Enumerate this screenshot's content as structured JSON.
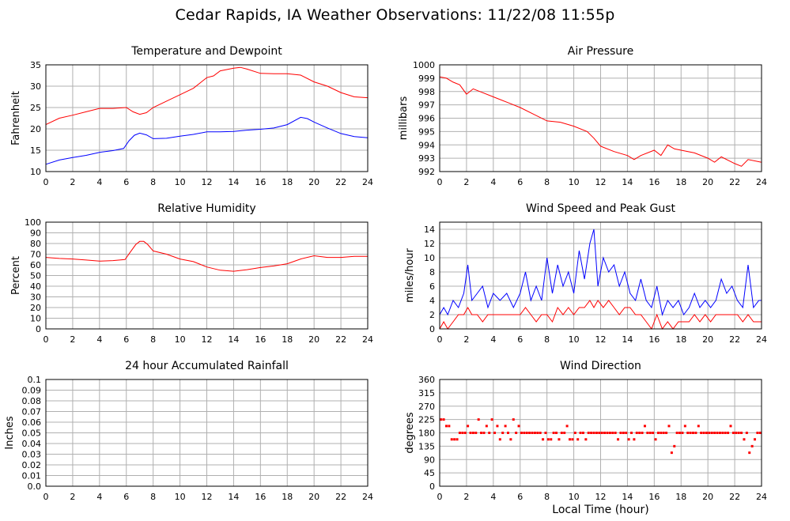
{
  "title": "Cedar Rapids, IA Weather Observations: 11/22/08 11:55p",
  "x_axis_label": "Local Time (hour)",
  "colors": {
    "red": "#ff0000",
    "blue": "#0000ff",
    "grid": "#b0b0b0"
  },
  "chart_data": [
    {
      "id": "temp",
      "type": "line",
      "title": "Temperature and Dewpoint",
      "ylabel": "Fahrenheit",
      "xlim": [
        0,
        24
      ],
      "ylim": [
        10,
        35
      ],
      "yticks": [
        10,
        15,
        20,
        25,
        30,
        35
      ],
      "xticks": [
        0,
        2,
        4,
        6,
        8,
        10,
        12,
        14,
        16,
        18,
        20,
        22,
        24
      ],
      "grid": true,
      "series": [
        {
          "color": "#ff0000",
          "x": [
            0,
            1,
            2,
            3,
            4,
            5,
            6,
            6.5,
            7,
            7.5,
            8,
            9,
            10,
            11,
            12,
            12.5,
            13,
            14,
            14.5,
            15,
            16,
            17,
            18,
            19,
            20,
            21,
            22,
            23,
            24
          ],
          "values": [
            21,
            22.5,
            23.2,
            24,
            24.8,
            24.8,
            25,
            24,
            23.4,
            23.8,
            25,
            26.5,
            28,
            29.5,
            32,
            32.4,
            33.6,
            34.2,
            34.4,
            34,
            33,
            32.9,
            32.9,
            32.6,
            31,
            30,
            28.5,
            27.5,
            27.3
          ]
        },
        {
          "color": "#0000ff",
          "x": [
            0,
            1,
            2,
            3,
            4,
            5,
            5.8,
            6.2,
            6.6,
            7,
            7.5,
            8,
            9,
            10,
            11,
            12,
            13,
            14,
            15,
            16,
            17,
            18,
            19,
            19.5,
            20,
            21,
            22,
            23,
            24
          ],
          "values": [
            11.7,
            12.7,
            13.3,
            13.8,
            14.5,
            14.9,
            15.4,
            17.2,
            18.5,
            19,
            18.6,
            17.7,
            17.8,
            18.3,
            18.7,
            19.3,
            19.3,
            19.4,
            19.7,
            19.9,
            20.2,
            21,
            22.7,
            22.4,
            21.6,
            20.2,
            18.9,
            18.2,
            17.9
          ]
        }
      ]
    },
    {
      "id": "pressure",
      "type": "line",
      "title": "Air Pressure",
      "ylabel": "millibars",
      "xlim": [
        0,
        24
      ],
      "ylim": [
        992,
        1000
      ],
      "yticks": [
        992,
        993,
        994,
        995,
        996,
        997,
        998,
        999,
        1000
      ],
      "xticks": [
        0,
        2,
        4,
        6,
        8,
        10,
        12,
        14,
        16,
        18,
        20,
        22,
        24
      ],
      "grid": true,
      "series": [
        {
          "color": "#ff0000",
          "x": [
            0,
            0.5,
            1,
            1.5,
            2,
            2.5,
            3,
            4,
            5,
            6,
            7,
            8,
            9,
            10,
            11,
            11.5,
            12,
            13,
            14,
            14.5,
            15,
            16,
            16.5,
            17,
            17.5,
            18,
            19,
            20,
            20.5,
            21,
            22,
            22.5,
            23,
            24
          ],
          "values": [
            999.1,
            999,
            998.7,
            998.5,
            997.8,
            998.2,
            998,
            997.6,
            997.2,
            996.8,
            996.3,
            995.8,
            995.7,
            995.4,
            995,
            994.5,
            993.9,
            993.5,
            993.2,
            992.9,
            993.2,
            993.6,
            993.2,
            994,
            993.7,
            993.6,
            993.4,
            993,
            992.7,
            993.1,
            992.6,
            992.4,
            992.9,
            992.7
          ]
        }
      ]
    },
    {
      "id": "humidity",
      "type": "line",
      "title": "Relative Humidity",
      "ylabel": "Percent",
      "xlim": [
        0,
        24
      ],
      "ylim": [
        0,
        100
      ],
      "yticks": [
        0,
        10,
        20,
        30,
        40,
        50,
        60,
        70,
        80,
        90,
        100
      ],
      "xticks": [
        0,
        2,
        4,
        6,
        8,
        10,
        12,
        14,
        16,
        18,
        20,
        22,
        24
      ],
      "grid": true,
      "series": [
        {
          "color": "#ff0000",
          "x": [
            0,
            1,
            2,
            3,
            4,
            5,
            5.9,
            6.3,
            6.7,
            7,
            7.3,
            7.6,
            8,
            9,
            10,
            11,
            12,
            13,
            14,
            15,
            16,
            17,
            18,
            19,
            20,
            21,
            22,
            23,
            24
          ],
          "values": [
            67,
            66,
            65.5,
            64.5,
            63.5,
            64,
            65,
            72,
            79,
            82,
            82,
            79,
            73,
            70,
            65.5,
            63,
            58,
            55,
            54,
            55.5,
            57.5,
            59,
            61,
            65.5,
            68.5,
            67,
            67,
            68,
            68
          ]
        }
      ]
    },
    {
      "id": "wind",
      "type": "line",
      "title": "Wind Speed and Peak Gust",
      "ylabel": "miles/hour",
      "xlim": [
        0,
        24
      ],
      "ylim": [
        0,
        15
      ],
      "yticks": [
        0,
        2,
        4,
        6,
        8,
        10,
        12,
        14
      ],
      "xticks": [
        0,
        2,
        4,
        6,
        8,
        10,
        12,
        14,
        16,
        18,
        20,
        22,
        24
      ],
      "grid": true,
      "series": [
        {
          "color": "#0000ff",
          "x": [
            0,
            0.3,
            0.6,
            1,
            1.4,
            1.8,
            2.1,
            2.4,
            2.8,
            3.2,
            3.6,
            4,
            4.5,
            5,
            5.5,
            6,
            6.4,
            6.8,
            7.2,
            7.6,
            8,
            8.4,
            8.8,
            9.2,
            9.6,
            10,
            10.4,
            10.8,
            11.2,
            11.5,
            11.8,
            12.2,
            12.6,
            13,
            13.4,
            13.8,
            14.2,
            14.6,
            15,
            15.4,
            15.8,
            16.2,
            16.6,
            17,
            17.4,
            17.8,
            18.2,
            18.6,
            19,
            19.4,
            19.8,
            20.2,
            20.6,
            21,
            21.4,
            21.8,
            22.2,
            22.6,
            23,
            23.4,
            23.8,
            24
          ],
          "values": [
            2,
            3,
            2,
            4,
            3,
            5,
            9,
            4,
            5,
            6,
            3,
            5,
            4,
            5,
            3,
            5,
            8,
            4,
            6,
            4,
            10,
            5,
            9,
            6,
            8,
            5,
            11,
            7,
            12,
            14,
            6,
            10,
            8,
            9,
            6,
            8,
            5,
            4,
            7,
            4,
            3,
            6,
            2,
            4,
            3,
            4,
            2,
            3,
            5,
            3,
            4,
            3,
            4,
            7,
            5,
            6,
            4,
            3,
            9,
            3,
            4,
            4
          ]
        },
        {
          "color": "#ff0000",
          "x": [
            0,
            0.3,
            0.6,
            1,
            1.4,
            1.8,
            2.1,
            2.4,
            2.8,
            3.2,
            3.6,
            4,
            4.5,
            5,
            5.5,
            6,
            6.4,
            6.8,
            7.2,
            7.6,
            8,
            8.4,
            8.8,
            9.2,
            9.6,
            10,
            10.4,
            10.8,
            11.2,
            11.5,
            11.8,
            12.2,
            12.6,
            13,
            13.4,
            13.8,
            14.2,
            14.6,
            15,
            15.4,
            15.8,
            16.2,
            16.6,
            17,
            17.4,
            17.8,
            18.2,
            18.6,
            19,
            19.4,
            19.8,
            20.2,
            20.6,
            21,
            21.4,
            21.8,
            22.2,
            22.6,
            23,
            23.4,
            23.8,
            24
          ],
          "values": [
            0,
            1,
            0,
            1,
            2,
            2,
            3,
            2,
            2,
            1,
            2,
            2,
            2,
            2,
            2,
            2,
            3,
            2,
            1,
            2,
            2,
            1,
            3,
            2,
            3,
            2,
            3,
            3,
            4,
            3,
            4,
            3,
            4,
            3,
            2,
            3,
            3,
            2,
            2,
            1,
            0,
            2,
            0,
            1,
            0,
            1,
            1,
            1,
            2,
            1,
            2,
            1,
            2,
            2,
            2,
            2,
            2,
            1,
            2,
            1,
            1,
            1
          ]
        }
      ]
    },
    {
      "id": "rain",
      "type": "line",
      "title": "24 hour Accumulated Rainfall",
      "ylabel": "Inches",
      "xlim": [
        0,
        24
      ],
      "ylim": [
        0,
        0.1
      ],
      "yticks": [
        0.0,
        0.01,
        0.02,
        0.03,
        0.04,
        0.05,
        0.06,
        0.07,
        0.08,
        0.09,
        0.1
      ],
      "ytick_labels": [
        "0.0",
        "0.01",
        "0.02",
        "0.03",
        "0.04",
        "0.05",
        "0.06",
        "0.07",
        "0.08",
        "0.09",
        "0.1"
      ],
      "xticks": [
        0,
        2,
        4,
        6,
        8,
        10,
        12,
        14,
        16,
        18,
        20,
        22,
        24
      ],
      "grid": true,
      "series": [
        {
          "color": "#ff0000",
          "x": [
            0,
            24
          ],
          "values": [
            0,
            0
          ]
        }
      ]
    },
    {
      "id": "direction",
      "type": "scatter",
      "title": "Wind Direction",
      "ylabel": "degrees",
      "xlim": [
        0,
        24
      ],
      "ylim": [
        0,
        360
      ],
      "yticks": [
        0,
        45,
        90,
        135,
        180,
        225,
        270,
        315,
        360
      ],
      "xticks": [
        0,
        2,
        4,
        6,
        8,
        10,
        12,
        14,
        16,
        18,
        20,
        22,
        24
      ],
      "grid": true,
      "series": [
        {
          "color": "#ff0000",
          "x": [
            0.1,
            0.3,
            0.5,
            0.7,
            0.9,
            1.1,
            1.3,
            1.5,
            1.7,
            1.9,
            2.1,
            2.3,
            2.5,
            2.7,
            2.9,
            3.1,
            3.3,
            3.5,
            3.7,
            3.9,
            4.1,
            4.3,
            4.5,
            4.7,
            4.9,
            5.1,
            5.3,
            5.5,
            5.7,
            5.9,
            6.1,
            6.3,
            6.5,
            6.7,
            6.9,
            7.1,
            7.3,
            7.5,
            7.7,
            7.9,
            8.1,
            8.3,
            8.5,
            8.7,
            8.9,
            9.1,
            9.3,
            9.5,
            9.7,
            9.9,
            10.1,
            10.3,
            10.5,
            10.7,
            10.9,
            11.1,
            11.3,
            11.5,
            11.7,
            11.9,
            12.1,
            12.3,
            12.5,
            12.7,
            12.9,
            13.1,
            13.3,
            13.5,
            13.7,
            13.9,
            14.1,
            14.3,
            14.5,
            14.7,
            14.9,
            15.1,
            15.3,
            15.5,
            15.7,
            15.9,
            16.1,
            16.3,
            16.5,
            16.7,
            16.9,
            17.1,
            17.3,
            17.5,
            17.7,
            17.9,
            18.1,
            18.3,
            18.5,
            18.7,
            18.9,
            19.1,
            19.3,
            19.5,
            19.7,
            19.9,
            20.1,
            20.3,
            20.5,
            20.7,
            20.9,
            21.1,
            21.3,
            21.5,
            21.7,
            21.9,
            22.1,
            22.3,
            22.5,
            22.7,
            22.9,
            23.1,
            23.3,
            23.5,
            23.7,
            23.9
          ],
          "values": [
            225,
            225,
            203,
            203,
            158,
            158,
            158,
            180,
            180,
            180,
            203,
            180,
            180,
            180,
            225,
            180,
            180,
            203,
            180,
            225,
            180,
            203,
            158,
            180,
            203,
            180,
            158,
            225,
            180,
            203,
            180,
            180,
            180,
            180,
            180,
            180,
            180,
            180,
            158,
            180,
            158,
            158,
            180,
            180,
            158,
            180,
            180,
            203,
            158,
            158,
            180,
            158,
            180,
            180,
            158,
            180,
            180,
            180,
            180,
            180,
            180,
            180,
            180,
            180,
            180,
            180,
            158,
            180,
            180,
            180,
            158,
            180,
            158,
            180,
            180,
            180,
            203,
            180,
            180,
            180,
            158,
            180,
            180,
            180,
            180,
            203,
            113,
            135,
            180,
            180,
            180,
            203,
            180,
            180,
            180,
            180,
            203,
            180,
            180,
            180,
            180,
            180,
            180,
            180,
            180,
            180,
            180,
            180,
            203,
            180,
            180,
            180,
            180,
            158,
            180,
            113,
            135,
            158,
            180,
            180
          ]
        }
      ]
    }
  ]
}
